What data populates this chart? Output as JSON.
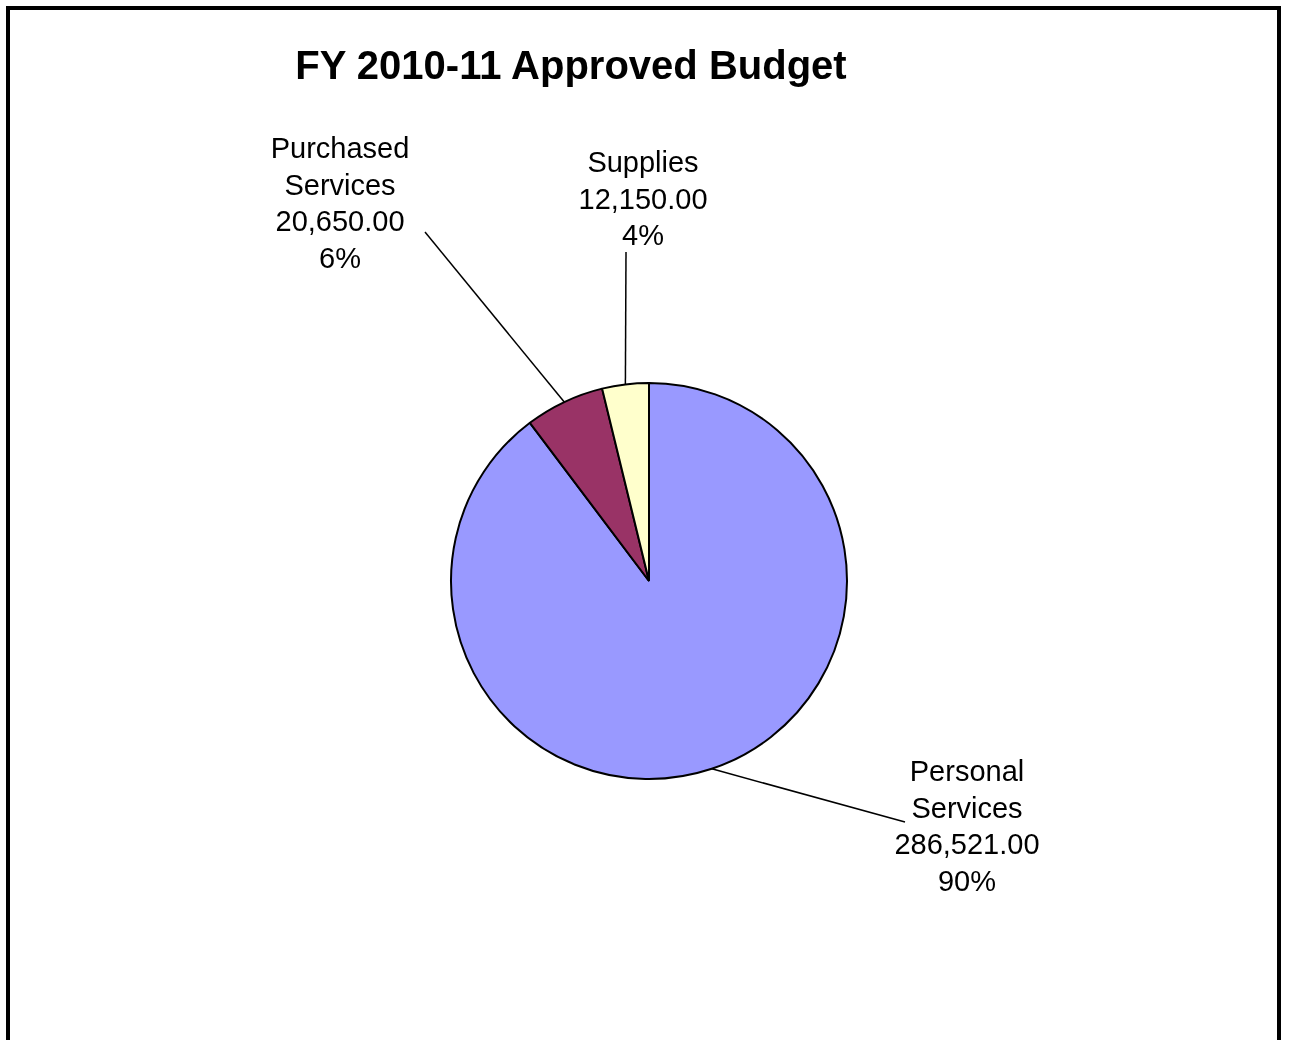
{
  "chart_data": {
    "type": "pie",
    "title": "FY 2010-11 Approved Budget",
    "categories": [
      "Personal Services",
      "Purchased Services",
      "Supplies"
    ],
    "values": [
      286521,
      20650,
      12150
    ],
    "colors": [
      "#9999ff",
      "#993366",
      "#ffffcc"
    ],
    "value_labels": [
      "286,521.00\n90%",
      "20,650.00\n6%",
      "12,150.00\n4%"
    ],
    "legend": false
  }
}
